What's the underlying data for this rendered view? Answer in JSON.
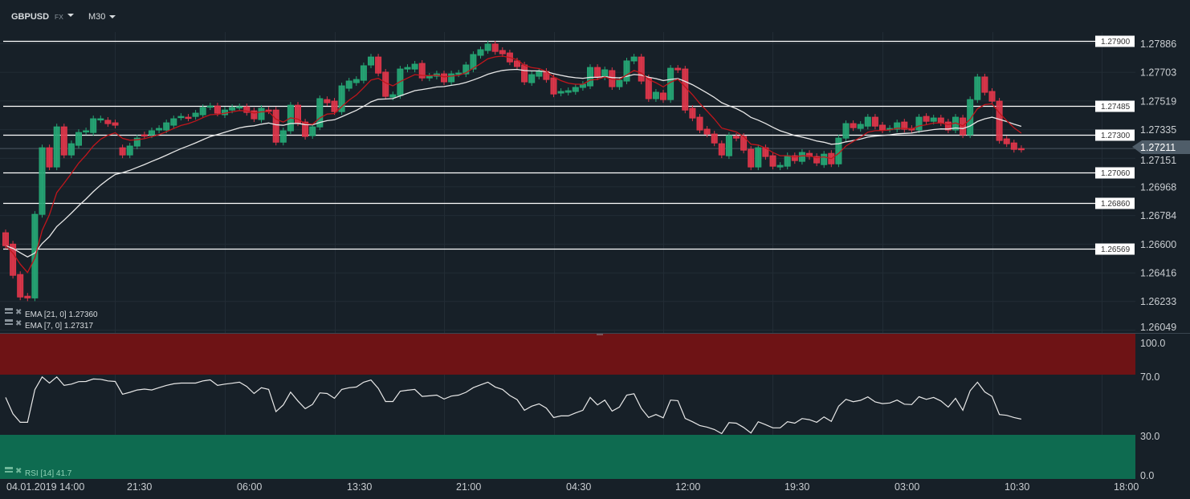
{
  "header": {
    "symbol": "GBPUSD",
    "market": "FX",
    "timeframe": "M30"
  },
  "indicators": {
    "ema21": {
      "label": "EMA [21, 0] 1.27360",
      "color": "#e8e8e8",
      "period": 21
    },
    "ema7": {
      "label": "EMA [7, 0] 1.27317",
      "color": "#c0161c",
      "period": 7
    },
    "rsi": {
      "label": "RSI [14]  41.7"
    }
  },
  "colors": {
    "up": "#26a775",
    "down": "#e0364a",
    "background": "#172028",
    "overbought": "#6e1315",
    "oversold": "#0e6b50"
  },
  "chart_data": {
    "type": "candlestick",
    "price_ticks": [
      "1.27886",
      "1.27703",
      "1.27519",
      "1.27335",
      "1.27151",
      "1.26968",
      "1.26784",
      "1.26600",
      "1.26416",
      "1.26233",
      "1.26049"
    ],
    "ylim": [
      1.26049,
      1.27886
    ],
    "current_price": "1.27211",
    "levels": [
      "1.27900",
      "1.27485",
      "1.27300",
      "1.27060",
      "1.26860",
      "1.26569"
    ],
    "time_labels": [
      "04.01.2019  14:00",
      "21:30",
      "06:00",
      "13:30",
      "21:00",
      "04:30",
      "12:00",
      "19:30",
      "03:00",
      "10:30",
      "18:00"
    ],
    "rsi_ticks": [
      "100.0",
      "70.0",
      "30.0",
      "0.0"
    ],
    "candles_open_close": [
      [
        1.26671,
        1.26588
      ],
      [
        1.26598,
        1.26398
      ],
      [
        1.26403,
        1.26259
      ],
      [
        1.26264,
        1.26253
      ],
      [
        1.26253,
        1.26789
      ],
      [
        1.26789,
        1.27216
      ],
      [
        1.27216,
        1.27093
      ],
      [
        1.27093,
        1.2735
      ],
      [
        1.2735,
        1.2717
      ],
      [
        1.2717,
        1.27242
      ],
      [
        1.27232,
        1.27314
      ],
      [
        1.27319,
        1.27325
      ],
      [
        1.27314,
        1.27402
      ],
      [
        1.27397,
        1.27402
      ],
      [
        1.27392,
        1.27371
      ],
      [
        1.27376,
        1.27361
      ],
      [
        1.27216,
        1.2717
      ],
      [
        1.2717,
        1.27227
      ],
      [
        1.27227,
        1.27278
      ],
      [
        1.27299,
        1.27294
      ],
      [
        1.27299,
        1.27325
      ],
      [
        1.2733,
        1.2734
      ],
      [
        1.2733,
        1.27376
      ],
      [
        1.27361,
        1.27402
      ],
      [
        1.27412,
        1.27417
      ],
      [
        1.27412,
        1.27407
      ],
      [
        1.27417,
        1.27438
      ],
      [
        1.27428,
        1.27474
      ],
      [
        1.27479,
        1.27484
      ],
      [
        1.27484,
        1.27438
      ],
      [
        1.27428,
        1.27458
      ],
      [
        1.27458,
        1.27474
      ],
      [
        1.27474,
        1.27479
      ],
      [
        1.27479,
        1.27443
      ],
      [
        1.27453,
        1.27402
      ],
      [
        1.27397,
        1.27469
      ],
      [
        1.27458,
        1.27453
      ],
      [
        1.27458,
        1.27252
      ],
      [
        1.27252,
        1.27325
      ],
      [
        1.27325,
        1.27489
      ],
      [
        1.27489,
        1.27376
      ],
      [
        1.27381,
        1.27289
      ],
      [
        1.27294,
        1.2735
      ],
      [
        1.2735,
        1.27531
      ],
      [
        1.27525,
        1.27505
      ],
      [
        1.27515,
        1.27448
      ],
      [
        1.27448,
        1.27613
      ],
      [
        1.27598,
        1.27644
      ],
      [
        1.27634,
        1.27654
      ],
      [
        1.27649,
        1.27742
      ],
      [
        1.27747,
        1.27798
      ],
      [
        1.27798,
        1.27695
      ],
      [
        1.27701,
        1.27546
      ],
      [
        1.27541,
        1.27556
      ],
      [
        1.27551,
        1.27721
      ],
      [
        1.27721,
        1.27731
      ],
      [
        1.27721,
        1.27752
      ],
      [
        1.27757,
        1.27664
      ],
      [
        1.27664,
        1.27675
      ],
      [
        1.27675,
        1.2769
      ],
      [
        1.2769,
        1.27639
      ],
      [
        1.27639,
        1.2769
      ],
      [
        1.2769,
        1.27695
      ],
      [
        1.2769,
        1.27747
      ],
      [
        1.27721,
        1.27814
      ],
      [
        1.27809,
        1.27845
      ],
      [
        1.2784,
        1.27881
      ],
      [
        1.27881,
        1.27834
      ],
      [
        1.2784,
        1.27819
      ],
      [
        1.27824,
        1.27767
      ],
      [
        1.27773,
        1.27737
      ],
      [
        1.27747,
        1.27639
      ],
      [
        1.27634,
        1.27685
      ],
      [
        1.27675,
        1.27706
      ],
      [
        1.27706,
        1.27654
      ],
      [
        1.27664,
        1.27561
      ],
      [
        1.27567,
        1.27577
      ],
      [
        1.27572,
        1.27582
      ],
      [
        1.27577,
        1.27603
      ],
      [
        1.27603,
        1.27623
      ],
      [
        1.27613,
        1.27731
      ],
      [
        1.27731,
        1.2767
      ],
      [
        1.2767,
        1.27716
      ],
      [
        1.27711,
        1.27608
      ],
      [
        1.27608,
        1.27649
      ],
      [
        1.27644,
        1.27773
      ],
      [
        1.27773,
        1.27798
      ],
      [
        1.27798,
        1.27644
      ],
      [
        1.27664,
        1.27531
      ],
      [
        1.27531,
        1.27572
      ],
      [
        1.27567,
        1.27525
      ],
      [
        1.27525,
        1.27726
      ],
      [
        1.27726,
        1.27716
      ],
      [
        1.27721,
        1.27458
      ],
      [
        1.27469,
        1.27407
      ],
      [
        1.27412,
        1.2733
      ],
      [
        1.27335,
        1.27304
      ],
      [
        1.27304,
        1.27247
      ],
      [
        1.27242,
        1.2717
      ],
      [
        1.27165,
        1.27294
      ],
      [
        1.27289,
        1.27278
      ],
      [
        1.27289,
        1.27201
      ],
      [
        1.27206,
        1.27093
      ],
      [
        1.27093,
        1.27216
      ],
      [
        1.27216,
        1.2716
      ],
      [
        1.27165,
        1.27098
      ],
      [
        1.27093,
        1.27103
      ],
      [
        1.27098,
        1.27165
      ],
      [
        1.27165,
        1.27134
      ],
      [
        1.27129,
        1.27186
      ],
      [
        1.2718,
        1.2716
      ],
      [
        1.2716,
        1.27119
      ],
      [
        1.27108,
        1.27175
      ],
      [
        1.2718,
        1.27113
      ],
      [
        1.27113,
        1.27278
      ],
      [
        1.27278,
        1.27371
      ],
      [
        1.27371,
        1.27345
      ],
      [
        1.2734,
        1.27366
      ],
      [
        1.27355,
        1.27412
      ],
      [
        1.27412,
        1.27355
      ],
      [
        1.27361,
        1.2733
      ],
      [
        1.27335,
        1.2734
      ],
      [
        1.27335,
        1.27376
      ],
      [
        1.27381,
        1.27335
      ],
      [
        1.2734,
        1.2733
      ],
      [
        1.2733,
        1.27412
      ],
      [
        1.27417,
        1.27386
      ],
      [
        1.27386,
        1.27407
      ],
      [
        1.27407,
        1.27376
      ],
      [
        1.27381,
        1.2733
      ],
      [
        1.2733,
        1.27412
      ],
      [
        1.27407,
        1.27299
      ],
      [
        1.27299,
        1.27525
      ],
      [
        1.27525,
        1.2767
      ],
      [
        1.2767,
        1.27572
      ],
      [
        1.27577,
        1.27515
      ],
      [
        1.27515,
        1.27263
      ],
      [
        1.27273,
        1.27242
      ],
      [
        1.27247,
        1.27206
      ],
      [
        1.27211,
        1.27206
      ]
    ],
    "rsi": [
      56.5,
      45.3,
      39.5,
      39.5,
      61.8,
      70.5,
      66.3,
      70.5,
      64.7,
      65.6,
      67.3,
      67.4,
      69.1,
      68.9,
      67.8,
      67.4,
      58.7,
      60.0,
      61.6,
      62.2,
      61.6,
      63.2,
      64.7,
      65.8,
      66.3,
      66.3,
      66.3,
      67.8,
      68.5,
      64.7,
      65.6,
      66.2,
      66.9,
      64.0,
      59.2,
      63.1,
      62.0,
      46.8,
      51.4,
      60.1,
      54.1,
      48.8,
      51.7,
      59.6,
      59.2,
      55.9,
      62.0,
      63.1,
      63.6,
      66.9,
      68.4,
      62.7,
      53.7,
      53.7,
      60.7,
      61.4,
      62.0,
      57.2,
      57.6,
      58.1,
      55.4,
      57.4,
      58.1,
      60.0,
      63.2,
      65.1,
      66.9,
      63.6,
      62.0,
      57.8,
      55.0,
      47.7,
      50.5,
      52.1,
      49.2,
      42.8,
      43.9,
      43.9,
      45.9,
      47.7,
      56.5,
      51.4,
      54.7,
      47.2,
      49.9,
      58.1,
      59.0,
      49.0,
      42.8,
      44.8,
      42.6,
      54.7,
      54.3,
      42.2,
      39.9,
      37.3,
      36.2,
      34.6,
      31.8,
      39.3,
      38.9,
      36.0,
      32.2,
      39.9,
      37.9,
      35.7,
      35.7,
      39.9,
      38.9,
      42.1,
      41.3,
      39.5,
      43.2,
      40.1,
      50.5,
      55.2,
      53.6,
      54.5,
      56.9,
      53.4,
      52.3,
      52.7,
      54.7,
      51.9,
      51.6,
      57.0,
      55.2,
      56.5,
      54.1,
      49.9,
      55.9,
      47.7,
      61.1,
      66.9,
      60.3,
      57.2,
      44.8,
      44.3,
      42.8,
      41.7
    ]
  }
}
